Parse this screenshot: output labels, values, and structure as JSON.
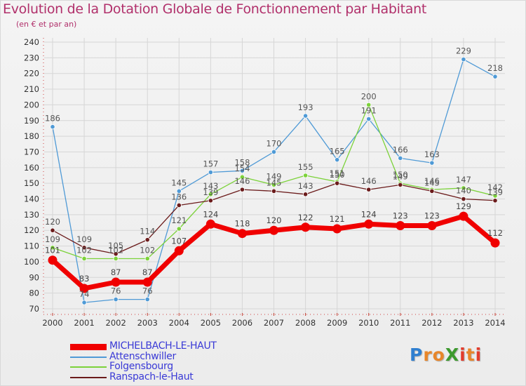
{
  "title": "Evolution de la Dotation Globale de Fonctionnement par Habitant",
  "subtitle": "(en € et par an)",
  "logo": {
    "text": "ProXiti",
    "letters": [
      "P",
      "r",
      "o",
      "X",
      "i",
      "t",
      "i"
    ],
    "colors": [
      "#2f7fd0",
      "#e8862a",
      "#e8862a",
      "#3d9a2e",
      "#e23c2c",
      "#e8862a",
      "#e23c2c"
    ]
  },
  "chart_data": {
    "type": "line",
    "title": "Evolution de la Dotation Globale de Fonctionnement par Habitant",
    "subtitle": "(en € et par an)",
    "categories": [
      "2000",
      "2001",
      "2002",
      "2003",
      "2004",
      "2005",
      "2006",
      "2007",
      "2008",
      "2009",
      "2010",
      "2011",
      "2012",
      "2013",
      "2014"
    ],
    "ylim": [
      70,
      240
    ],
    "yticks": [
      70,
      80,
      90,
      100,
      110,
      120,
      130,
      140,
      150,
      160,
      170,
      180,
      190,
      200,
      210,
      220,
      230,
      240
    ],
    "grid": true,
    "series": [
      {
        "name": "MICHELBACH-LE-HAUT",
        "color": "#f00000",
        "labelColor": "#444444",
        "emphasis": true,
        "values": [
          101,
          83,
          87,
          87,
          107,
          124,
          118,
          120,
          122,
          121,
          124,
          123,
          123,
          129,
          112
        ],
        "labels": [
          "101",
          "83",
          "87",
          "87",
          "107",
          "124",
          "118",
          "120",
          "122",
          "121",
          "124",
          "123",
          "123",
          "129",
          "112"
        ]
      },
      {
        "name": "Attenschwiller",
        "color": "#4f9ad6",
        "labelColor": "#555555",
        "emphasis": false,
        "values": [
          186,
          74,
          76,
          76,
          145,
          157,
          158,
          170,
          193,
          165,
          191,
          166,
          163,
          229,
          218
        ],
        "labels": [
          "186",
          "74",
          "76",
          "76",
          "145",
          "157",
          "158",
          "170",
          "193",
          "165",
          "191",
          "166",
          "163",
          "229",
          "218"
        ]
      },
      {
        "name": "Folgensbourg",
        "color": "#7cd23a",
        "labelColor": "#555555",
        "emphasis": false,
        "values": [
          109,
          102,
          102,
          102,
          121,
          143,
          154,
          149,
          155,
          151,
          200,
          150,
          146,
          147,
          142
        ],
        "labels": [
          "109",
          "102",
          "102",
          "102",
          "121",
          "143",
          "154",
          "149",
          "155",
          "151",
          "200",
          "150",
          "146",
          "147",
          "142"
        ]
      },
      {
        "name": "Ranspach-le-Haut",
        "color": "#6b1b1b",
        "labelColor": "#555555",
        "emphasis": false,
        "values": [
          120,
          109,
          105,
          114,
          136,
          139,
          146,
          145,
          143,
          150,
          146,
          149,
          145,
          140,
          139
        ],
        "labels": [
          "120",
          "109",
          "105",
          "114",
          "136",
          "139",
          "146",
          "145",
          "143",
          "150",
          "146",
          "149",
          "145",
          "140",
          "139"
        ]
      }
    ]
  }
}
